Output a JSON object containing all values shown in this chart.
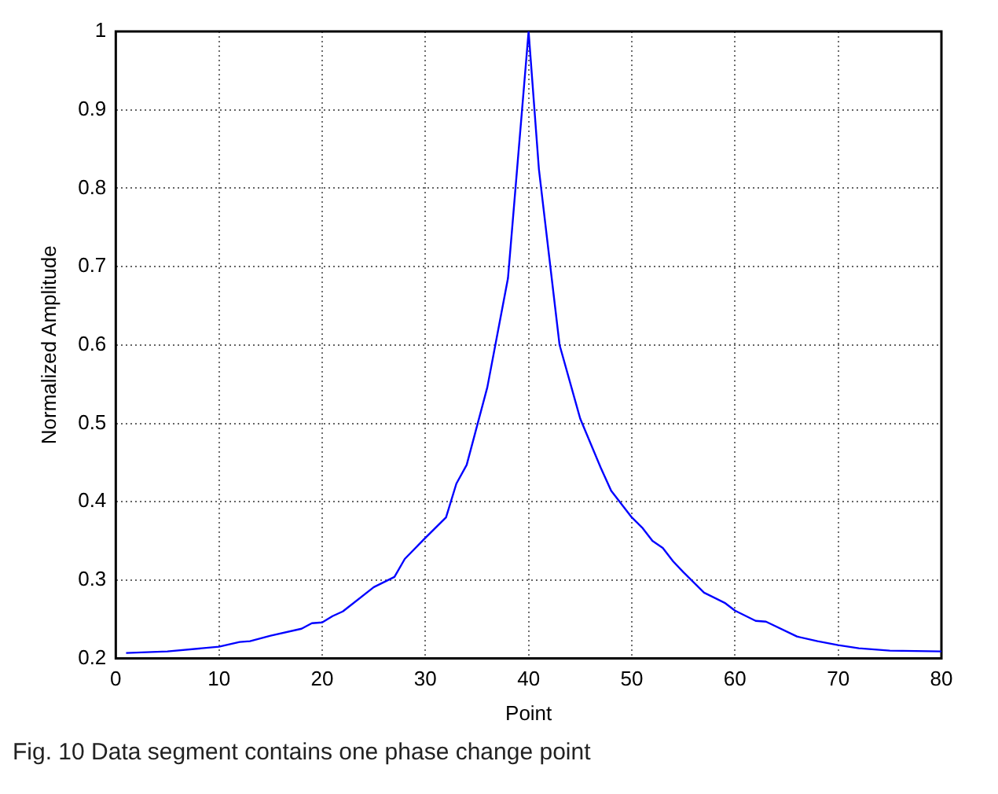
{
  "chart_data": {
    "type": "line",
    "xlabel": "Point",
    "ylabel": "Normalized Amplitude",
    "annotations": [
      "Fig. 10 Data segment contains one phase change point"
    ],
    "xlim": [
      0,
      80
    ],
    "xticks": [
      0,
      10,
      20,
      30,
      40,
      50,
      60,
      70,
      80
    ],
    "ylim": [
      0.2,
      1
    ],
    "yticks": [
      0.2,
      0.3,
      0.4,
      0.5,
      0.6,
      0.7,
      0.8,
      0.9,
      1
    ],
    "grid": true,
    "marker": "none",
    "line_style": "solid",
    "series": [
      {
        "color": "#0000ff",
        "x": [
          1,
          5,
          10,
          12,
          13,
          15,
          18,
          19,
          20,
          21,
          22,
          25,
          27,
          28,
          30,
          32,
          33,
          34,
          36,
          38,
          40,
          41,
          43,
          45,
          47,
          48,
          50,
          51,
          52,
          53,
          54,
          55,
          57,
          59,
          60,
          62,
          63,
          66,
          68,
          70,
          72,
          75,
          80
        ],
        "values": [
          0.207,
          0.209,
          0.215,
          0.221,
          0.222,
          0.229,
          0.238,
          0.245,
          0.246,
          0.254,
          0.26,
          0.291,
          0.304,
          0.327,
          0.354,
          0.38,
          0.423,
          0.447,
          0.546,
          0.685,
          1.0,
          0.824,
          0.6,
          0.506,
          0.443,
          0.414,
          0.38,
          0.367,
          0.35,
          0.341,
          0.324,
          0.31,
          0.284,
          0.271,
          0.261,
          0.248,
          0.247,
          0.228,
          0.222,
          0.217,
          0.213,
          0.21,
          0.209
        ]
      }
    ]
  }
}
